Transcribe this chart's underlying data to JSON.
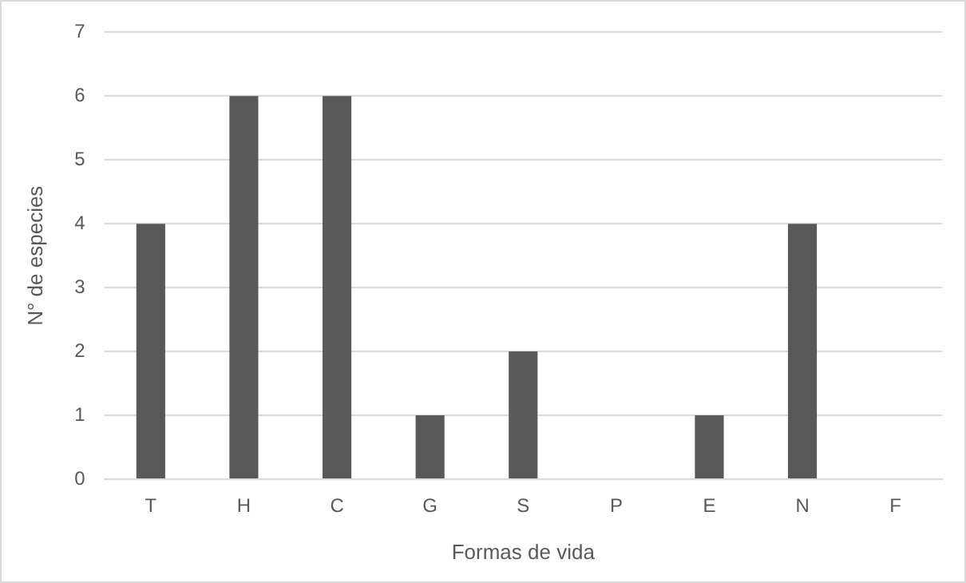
{
  "chart_data": {
    "type": "bar",
    "xlabel": "Formas de vida",
    "ylabel": "N° de especies",
    "categories": [
      "T",
      "H",
      "C",
      "G",
      "S",
      "P",
      "E",
      "N",
      "F"
    ],
    "values": [
      4,
      6,
      6,
      1,
      2,
      0,
      1,
      4,
      0
    ],
    "color": "#595959",
    "ylim": [
      0,
      7
    ],
    "yticks": [
      0,
      1,
      2,
      3,
      4,
      5,
      6,
      7
    ],
    "grid": "y"
  }
}
